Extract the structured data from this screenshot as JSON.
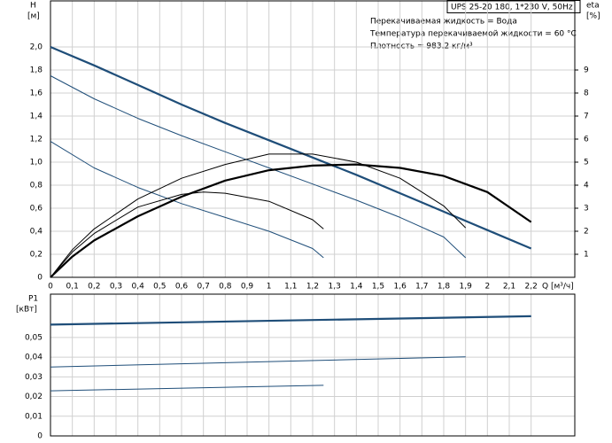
{
  "chart_data": [
    {
      "type": "line",
      "title": "UPS 25-20 180, 1*230 V, 50Hz",
      "annotations": [
        "Перекачиваемая жидкость = Вода",
        "Температура перекачиваемой жидкости = 60 °C",
        "Плотность = 983.2 кг/м³"
      ],
      "y_label": "H",
      "y_unit": "[м]",
      "y2_label": "eta",
      "y2_unit": "[%]",
      "x_label": "Q [м³/ч]",
      "xlim": [
        0,
        2.4
      ],
      "ylim": [
        0,
        2.4
      ],
      "y2lim": [
        0,
        12
      ],
      "grid": true,
      "xticks": [
        0,
        {
          "value": 0.1,
          "label": "0,1"
        },
        {
          "value": 0.2,
          "label": "0,2"
        },
        {
          "value": 0.3,
          "label": "0,3"
        },
        {
          "value": 0.4,
          "label": "0,4"
        },
        {
          "value": 0.5,
          "label": "0,5"
        },
        {
          "value": 0.6,
          "label": "0,6"
        },
        {
          "value": 0.7,
          "label": "0,7"
        },
        {
          "value": 0.8,
          "label": "0,8"
        },
        {
          "value": 0.9,
          "label": "0,9"
        },
        1,
        {
          "value": 1.1,
          "label": "1,1"
        },
        {
          "value": 1.2,
          "label": "1,2"
        },
        {
          "value": 1.3,
          "label": "1,3"
        },
        {
          "value": 1.4,
          "label": "1,4"
        },
        {
          "value": 1.5,
          "label": "1,5"
        },
        {
          "value": 1.6,
          "label": "1,6"
        },
        {
          "value": 1.7,
          "label": "1,7"
        },
        {
          "value": 1.8,
          "label": "1,8"
        },
        {
          "value": 1.9,
          "label": "1,9"
        },
        2,
        {
          "value": 2.1,
          "label": "2,1"
        },
        {
          "value": 2.2,
          "label": "2,2"
        }
      ],
      "yticks": [
        0,
        {
          "value": 0.2,
          "label": "0,2"
        },
        {
          "value": 0.4,
          "label": "0,4"
        },
        {
          "value": 0.6,
          "label": "0,6"
        },
        {
          "value": 0.8,
          "label": "0,8"
        },
        {
          "value": 1.0,
          "label": "1,0"
        },
        {
          "value": 1.2,
          "label": "1,2"
        },
        {
          "value": 1.4,
          "label": "1,4"
        },
        {
          "value": 1.6,
          "label": "1,6"
        },
        {
          "value": 1.8,
          "label": "1,8"
        },
        {
          "value": 2.0,
          "label": "2,0"
        }
      ],
      "y2ticks": [
        1,
        2,
        3,
        4,
        5,
        6,
        7,
        8,
        9
      ],
      "series": [
        {
          "color": "#1f4e79",
          "line_width": 2.2,
          "x": [
            0,
            0.2,
            0.4,
            0.6,
            0.8,
            1.0,
            1.2,
            1.4,
            1.6,
            1.8,
            2.0,
            2.2
          ],
          "values": [
            2.0,
            1.84,
            1.67,
            1.5,
            1.34,
            1.19,
            1.04,
            0.89,
            0.73,
            0.57,
            0.41,
            0.25
          ]
        },
        {
          "color": "#1f4e79",
          "line_width": 1,
          "x": [
            0,
            0.2,
            0.4,
            0.6,
            0.8,
            1.0,
            1.2,
            1.4,
            1.6,
            1.8,
            1.9
          ],
          "values": [
            1.75,
            1.55,
            1.38,
            1.23,
            1.09,
            0.95,
            0.81,
            0.67,
            0.52,
            0.35,
            0.17
          ]
        },
        {
          "color": "#1f4e79",
          "line_width": 1,
          "x": [
            0,
            0.2,
            0.4,
            0.6,
            0.8,
            1.0,
            1.2,
            1.25
          ],
          "values": [
            1.18,
            0.95,
            0.78,
            0.64,
            0.52,
            0.4,
            0.25,
            0.17
          ]
        },
        {
          "color": "#000000",
          "line_width": 2.2,
          "axis": "y2",
          "x": [
            0,
            0.1,
            0.2,
            0.4,
            0.6,
            0.8,
            1.0,
            1.2,
            1.4,
            1.6,
            1.8,
            2.0,
            2.2
          ],
          "values": [
            0,
            0.9,
            1.6,
            2.65,
            3.5,
            4.2,
            4.65,
            4.85,
            4.9,
            4.75,
            4.4,
            3.7,
            2.4
          ]
        },
        {
          "color": "#000000",
          "line_width": 1,
          "axis": "y2",
          "x": [
            0,
            0.1,
            0.2,
            0.4,
            0.6,
            0.8,
            1.0,
            1.2,
            1.4,
            1.6,
            1.8,
            1.9
          ],
          "values": [
            0,
            1.2,
            2.1,
            3.4,
            4.3,
            4.9,
            5.35,
            5.35,
            5.0,
            4.3,
            3.1,
            2.15
          ]
        },
        {
          "color": "#000000",
          "line_width": 1,
          "axis": "y2",
          "x": [
            0,
            0.1,
            0.2,
            0.4,
            0.6,
            0.7,
            0.8,
            1.0,
            1.2,
            1.25
          ],
          "values": [
            0,
            1.1,
            1.9,
            3.05,
            3.6,
            3.7,
            3.65,
            3.3,
            2.5,
            2.1
          ]
        }
      ]
    },
    {
      "type": "line",
      "y_label": "P1",
      "y_unit": "[кВт]",
      "xlim": [
        0,
        2.4
      ],
      "ylim": [
        0,
        0.072
      ],
      "grid": true,
      "yticks": [
        0,
        {
          "value": 0.01,
          "label": "0,01"
        },
        {
          "value": 0.02,
          "label": "0,02"
        },
        {
          "value": 0.03,
          "label": "0,03"
        },
        {
          "value": 0.04,
          "label": "0,04"
        },
        {
          "value": 0.05,
          "label": "0,05"
        }
      ],
      "series": [
        {
          "color": "#1f4e79",
          "line_width": 2.2,
          "x": [
            0,
            2.2
          ],
          "values": [
            0.0565,
            0.0608
          ]
        },
        {
          "color": "#1f4e79",
          "line_width": 1,
          "x": [
            0,
            1.9
          ],
          "values": [
            0.035,
            0.0402
          ]
        },
        {
          "color": "#1f4e79",
          "line_width": 1,
          "x": [
            0,
            1.25
          ],
          "values": [
            0.0229,
            0.0257
          ]
        }
      ]
    }
  ]
}
